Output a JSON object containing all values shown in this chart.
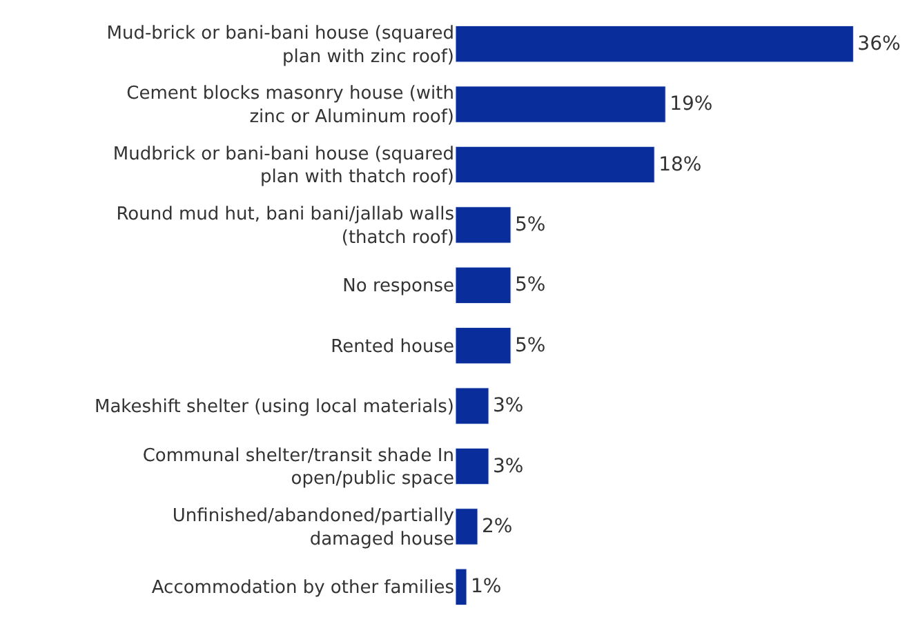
{
  "chart_data": {
    "type": "bar",
    "orientation": "horizontal",
    "categories": [
      "Mud-brick or bani-bani house (squared\nplan with zinc roof)",
      "Cement blocks masonry house (with\nzinc or Aluminum roof)",
      "Mudbrick or bani-bani house (squared\nplan with thatch roof)",
      "Round mud hut, bani bani/jallab walls\n(thatch roof)",
      "No response",
      "Rented house",
      "Makeshift shelter (using local materials)",
      "Communal shelter/transit shade In\nopen/public space",
      "Unfinished/abandoned/partially\ndamaged house",
      "Accommodation by other families"
    ],
    "values": [
      36,
      19,
      18,
      5,
      5,
      5,
      3,
      3,
      2,
      1
    ],
    "value_labels": [
      "36%",
      "19%",
      "18%",
      "5%",
      "5%",
      "5%",
      "3%",
      "3%",
      "2%",
      "1%"
    ],
    "color": "#0a2d9c"
  }
}
